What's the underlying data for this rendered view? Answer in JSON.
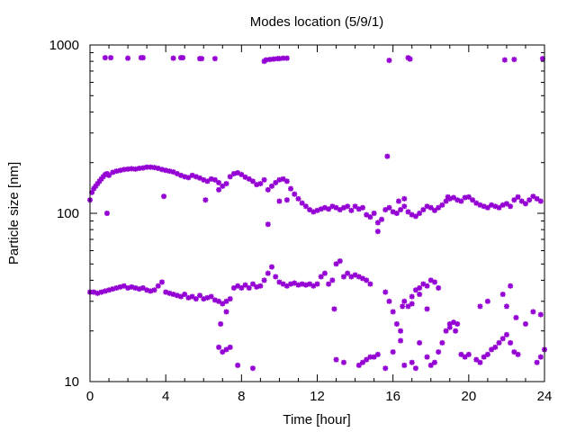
{
  "chart_data": {
    "type": "scatter",
    "title": "Modes location (5/9/1)",
    "xlabel": "Time [hour]",
    "ylabel": "Particle size [nm]",
    "xlim": [
      0,
      24
    ],
    "ylim": [
      10,
      1000
    ],
    "yscale": "log",
    "grid": false,
    "legend": "none",
    "x_ticks": [
      0,
      4,
      8,
      12,
      16,
      20,
      24
    ],
    "x_tick_labels": [
      "0",
      "4",
      "8",
      "12",
      "16",
      "20",
      "24"
    ],
    "y_ticks": [
      10,
      100,
      1000
    ],
    "y_tick_labels": [
      "10",
      "100",
      "1000"
    ],
    "marker_color": "#9400d3",
    "series": [
      {
        "points": [
          [
            0.8,
            840
          ],
          [
            1.1,
            840
          ],
          [
            2.0,
            835
          ],
          [
            2.7,
            840
          ],
          [
            2.8,
            840
          ],
          [
            4.4,
            835
          ],
          [
            4.8,
            840
          ],
          [
            4.9,
            840
          ],
          [
            5.8,
            830
          ],
          [
            5.9,
            830
          ],
          [
            6.6,
            830
          ],
          [
            9.2,
            800
          ],
          [
            9.3,
            815
          ],
          [
            9.5,
            820
          ],
          [
            9.7,
            825
          ],
          [
            9.9,
            830
          ],
          [
            10.0,
            830
          ],
          [
            10.2,
            835
          ],
          [
            10.4,
            835
          ],
          [
            15.8,
            810
          ],
          [
            16.8,
            840
          ],
          [
            16.9,
            825
          ],
          [
            21.9,
            815
          ],
          [
            22.4,
            820
          ],
          [
            23.9,
            830
          ],
          [
            0.0,
            120
          ],
          [
            0.1,
            133
          ],
          [
            0.2,
            140
          ],
          [
            0.3,
            145
          ],
          [
            0.4,
            150
          ],
          [
            0.5,
            155
          ],
          [
            0.6,
            160
          ],
          [
            0.7,
            165
          ],
          [
            0.8,
            170
          ],
          [
            0.9,
            172
          ],
          [
            1.0,
            168
          ],
          [
            1.2,
            175
          ],
          [
            1.4,
            178
          ],
          [
            1.6,
            180
          ],
          [
            1.8,
            182
          ],
          [
            2.0,
            183
          ],
          [
            2.2,
            184
          ],
          [
            2.4,
            183
          ],
          [
            2.6,
            185
          ],
          [
            2.8,
            186
          ],
          [
            3.0,
            188
          ],
          [
            3.2,
            188
          ],
          [
            3.4,
            187
          ],
          [
            3.6,
            185
          ],
          [
            3.8,
            182
          ],
          [
            4.0,
            180
          ],
          [
            4.2,
            178
          ],
          [
            4.4,
            176
          ],
          [
            4.6,
            172
          ],
          [
            4.8,
            168
          ],
          [
            5.0,
            165
          ],
          [
            5.2,
            163
          ],
          [
            5.4,
            168
          ],
          [
            5.6,
            165
          ],
          [
            5.8,
            162
          ],
          [
            6.0,
            158
          ],
          [
            6.2,
            155
          ],
          [
            6.4,
            160
          ],
          [
            6.6,
            158
          ],
          [
            6.8,
            152
          ],
          [
            7.0,
            145
          ],
          [
            7.2,
            150
          ],
          [
            7.4,
            165
          ],
          [
            7.6,
            172
          ],
          [
            7.8,
            174
          ],
          [
            8.0,
            170
          ],
          [
            8.2,
            164
          ],
          [
            8.4,
            160
          ],
          [
            8.6,
            155
          ],
          [
            8.8,
            148
          ],
          [
            9.0,
            150
          ],
          [
            9.2,
            158
          ],
          [
            9.4,
            138
          ],
          [
            9.6,
            145
          ],
          [
            9.8,
            152
          ],
          [
            10.0,
            158
          ],
          [
            10.2,
            160
          ],
          [
            10.4,
            155
          ],
          [
            10.6,
            140
          ],
          [
            10.8,
            130
          ],
          [
            11.0,
            122
          ],
          [
            11.2,
            115
          ],
          [
            11.4,
            110
          ],
          [
            11.6,
            105
          ],
          [
            11.8,
            102
          ],
          [
            12.0,
            104
          ],
          [
            12.2,
            106
          ],
          [
            12.4,
            108
          ],
          [
            12.6,
            106
          ],
          [
            12.8,
            110
          ],
          [
            13.0,
            108
          ],
          [
            13.2,
            105
          ],
          [
            13.4,
            108
          ],
          [
            13.6,
            110
          ],
          [
            13.8,
            104
          ],
          [
            14.0,
            110
          ],
          [
            14.2,
            106
          ],
          [
            14.4,
            108
          ],
          [
            14.6,
            98
          ],
          [
            14.8,
            95
          ],
          [
            15.0,
            100
          ],
          [
            15.2,
            88
          ],
          [
            15.4,
            92
          ],
          [
            15.6,
            105
          ],
          [
            15.8,
            108
          ],
          [
            16.0,
            102
          ],
          [
            16.2,
            100
          ],
          [
            16.4,
            105
          ],
          [
            16.6,
            110
          ],
          [
            16.8,
            102
          ],
          [
            17.0,
            98
          ],
          [
            17.2,
            96
          ],
          [
            17.4,
            100
          ],
          [
            17.6,
            105
          ],
          [
            17.8,
            110
          ],
          [
            18.0,
            108
          ],
          [
            18.2,
            104
          ],
          [
            18.4,
            108
          ],
          [
            18.6,
            112
          ],
          [
            18.8,
            118
          ],
          [
            19.0,
            122
          ],
          [
            19.2,
            124
          ],
          [
            19.4,
            120
          ],
          [
            19.6,
            118
          ],
          [
            19.8,
            124
          ],
          [
            20.0,
            125
          ],
          [
            20.2,
            120
          ],
          [
            20.4,
            115
          ],
          [
            20.6,
            112
          ],
          [
            20.8,
            110
          ],
          [
            21.0,
            108
          ],
          [
            21.2,
            112
          ],
          [
            21.4,
            110
          ],
          [
            21.6,
            108
          ],
          [
            21.8,
            112
          ],
          [
            22.0,
            114
          ],
          [
            22.2,
            110
          ],
          [
            22.4,
            120
          ],
          [
            22.6,
            125
          ],
          [
            22.8,
            118
          ],
          [
            23.0,
            114
          ],
          [
            23.2,
            120
          ],
          [
            23.4,
            126
          ],
          [
            23.6,
            122
          ],
          [
            23.8,
            118
          ],
          [
            0.9,
            100
          ],
          [
            3.9,
            126
          ],
          [
            6.1,
            120
          ],
          [
            6.8,
            138
          ],
          [
            9.4,
            86
          ],
          [
            10.0,
            118
          ],
          [
            10.4,
            120
          ],
          [
            15.2,
            78
          ],
          [
            15.7,
            218
          ],
          [
            16.3,
            118
          ],
          [
            16.6,
            122
          ],
          [
            18.9,
            125
          ],
          [
            0.0,
            34
          ],
          [
            0.2,
            34
          ],
          [
            0.4,
            33.5
          ],
          [
            0.6,
            34
          ],
          [
            0.8,
            34.5
          ],
          [
            1.0,
            35
          ],
          [
            1.2,
            35.5
          ],
          [
            1.4,
            36
          ],
          [
            1.6,
            36.5
          ],
          [
            1.8,
            37
          ],
          [
            2.0,
            36
          ],
          [
            2.2,
            36.5
          ],
          [
            2.4,
            36
          ],
          [
            2.6,
            35.5
          ],
          [
            2.8,
            36
          ],
          [
            3.0,
            35
          ],
          [
            3.2,
            34.5
          ],
          [
            3.4,
            35
          ],
          [
            3.6,
            37
          ],
          [
            3.8,
            39
          ],
          [
            4.0,
            34
          ],
          [
            4.2,
            33.5
          ],
          [
            4.4,
            33
          ],
          [
            4.6,
            32.5
          ],
          [
            4.8,
            32
          ],
          [
            5.0,
            33
          ],
          [
            5.2,
            31.5
          ],
          [
            5.4,
            32
          ],
          [
            5.6,
            31
          ],
          [
            5.8,
            32.5
          ],
          [
            6.0,
            31
          ],
          [
            6.2,
            31.5
          ],
          [
            6.4,
            32
          ],
          [
            6.6,
            30.5
          ],
          [
            6.8,
            30
          ],
          [
            7.0,
            29
          ],
          [
            7.2,
            30
          ],
          [
            7.4,
            31
          ],
          [
            7.6,
            36
          ],
          [
            7.8,
            37
          ],
          [
            8.0,
            36
          ],
          [
            8.2,
            37.5
          ],
          [
            8.4,
            36
          ],
          [
            8.6,
            38
          ],
          [
            8.8,
            36.5
          ],
          [
            9.0,
            37
          ],
          [
            9.2,
            40
          ],
          [
            9.4,
            44
          ],
          [
            9.6,
            48
          ],
          [
            9.8,
            42
          ],
          [
            10.0,
            39
          ],
          [
            10.2,
            38
          ],
          [
            10.4,
            37
          ],
          [
            10.6,
            38
          ],
          [
            10.8,
            38.5
          ],
          [
            11.0,
            37.5
          ],
          [
            11.2,
            38
          ],
          [
            11.4,
            37.5
          ],
          [
            11.6,
            38
          ],
          [
            11.8,
            37
          ],
          [
            12.0,
            38
          ],
          [
            12.2,
            42
          ],
          [
            12.4,
            44
          ],
          [
            12.6,
            38
          ],
          [
            12.8,
            40
          ],
          [
            13.0,
            50
          ],
          [
            13.2,
            52
          ],
          [
            13.4,
            42
          ],
          [
            13.6,
            44
          ],
          [
            13.8,
            42
          ],
          [
            14.0,
            43
          ],
          [
            14.2,
            42
          ],
          [
            14.4,
            41
          ],
          [
            14.6,
            40
          ],
          [
            14.8,
            38
          ],
          [
            15.6,
            34
          ],
          [
            15.8,
            30
          ],
          [
            16.0,
            26
          ],
          [
            16.2,
            22
          ],
          [
            16.4,
            20
          ],
          [
            16.6,
            30
          ],
          [
            16.8,
            28
          ],
          [
            17.0,
            32
          ],
          [
            17.2,
            35
          ],
          [
            17.4,
            36
          ],
          [
            17.6,
            38
          ],
          [
            17.8,
            37
          ],
          [
            18.0,
            40
          ],
          [
            18.2,
            39
          ],
          [
            18.4,
            36
          ],
          [
            6.9,
            22
          ],
          [
            7.2,
            26
          ],
          [
            12.9,
            27
          ],
          [
            16.5,
            28
          ],
          [
            17.0,
            29
          ],
          [
            17.4,
            33
          ],
          [
            17.8,
            27
          ],
          [
            20.6,
            28
          ],
          [
            21.0,
            30
          ],
          [
            21.8,
            33
          ],
          [
            22.0,
            28
          ],
          [
            22.2,
            37
          ],
          [
            22.5,
            24
          ],
          [
            23.0,
            22
          ],
          [
            23.4,
            26
          ],
          [
            23.8,
            25
          ],
          [
            6.8,
            16
          ],
          [
            7.0,
            15
          ],
          [
            7.2,
            15.5
          ],
          [
            7.4,
            16
          ],
          [
            7.8,
            12.5
          ],
          [
            8.6,
            12
          ],
          [
            13.0,
            13.5
          ],
          [
            13.4,
            13
          ],
          [
            14.2,
            12.5
          ],
          [
            14.4,
            13
          ],
          [
            14.6,
            13.5
          ],
          [
            14.8,
            14
          ],
          [
            15.0,
            14
          ],
          [
            15.2,
            14.5
          ],
          [
            15.6,
            12
          ],
          [
            16.0,
            15
          ],
          [
            16.6,
            12.5
          ],
          [
            17.0,
            13
          ],
          [
            17.4,
            17
          ],
          [
            17.8,
            14
          ],
          [
            18.0,
            12.5
          ],
          [
            18.2,
            13
          ],
          [
            18.4,
            15
          ],
          [
            18.6,
            17
          ],
          [
            18.8,
            20
          ],
          [
            19.0,
            22
          ],
          [
            19.2,
            22.5
          ],
          [
            19.4,
            22
          ],
          [
            19.6,
            14.5
          ],
          [
            19.8,
            14
          ],
          [
            20.0,
            14.5
          ],
          [
            20.4,
            13.5
          ],
          [
            20.6,
            13
          ],
          [
            20.8,
            14
          ],
          [
            21.0,
            14.5
          ],
          [
            21.2,
            15.5
          ],
          [
            21.4,
            16
          ],
          [
            21.6,
            17
          ],
          [
            21.8,
            18
          ],
          [
            22.0,
            19
          ],
          [
            22.2,
            17
          ],
          [
            22.4,
            15
          ],
          [
            22.6,
            14.5
          ],
          [
            23.6,
            13
          ],
          [
            23.8,
            14
          ],
          [
            24.0,
            15.5
          ],
          [
            16.4,
            17.5
          ],
          [
            17.2,
            12
          ],
          [
            19.0,
            21
          ],
          [
            19.3,
            20
          ]
        ]
      }
    ]
  }
}
